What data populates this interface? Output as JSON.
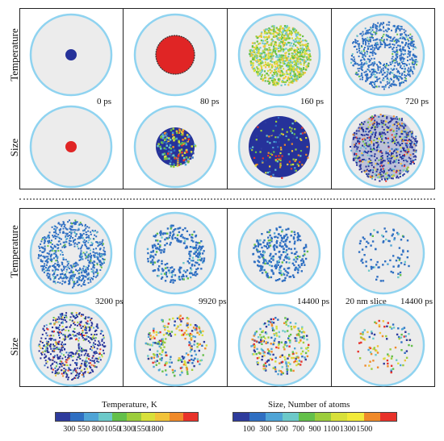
{
  "row_labels": {
    "top": [
      "Temperature",
      "Size"
    ],
    "bottom": [
      "Temperature",
      "Size"
    ]
  },
  "top_times": [
    "0 ps",
    "80 ps",
    "160 ps",
    "720 ps"
  ],
  "bottom_times": [
    "3200 ps",
    "9920 ps",
    "14400 ps",
    "14400 ps"
  ],
  "slice_label": "20 nm slice",
  "legend_temperature": {
    "title": "Temperature, K",
    "ticks": [
      "300",
      "550",
      "800",
      "1050",
      "1300",
      "1550",
      "1800"
    ],
    "colors": [
      "#2e3b9c",
      "#2f6fc2",
      "#4fa4d6",
      "#6cc9c9",
      "#63c04a",
      "#9ccd3c",
      "#d8e03a",
      "#f2c33a",
      "#f08a2a",
      "#e8322a"
    ]
  },
  "legend_size": {
    "title": "Size, Number of atoms",
    "ticks": [
      "100",
      "300",
      "500",
      "700",
      "900",
      "1100",
      "1300",
      "1500"
    ],
    "colors": [
      "#2e3b9c",
      "#2f6fc2",
      "#4fa4d6",
      "#6cc9c9",
      "#63c04a",
      "#9ccd3c",
      "#d8e03a",
      "#f2ea3a",
      "#f08a2a",
      "#e8322a"
    ]
  },
  "circle_colors": {
    "ring": "#8fd3f0",
    "fill": "#ececec",
    "atoms_blue": "#2f6fc2",
    "dark_blue": "#26329a",
    "red": "#e02525"
  }
}
